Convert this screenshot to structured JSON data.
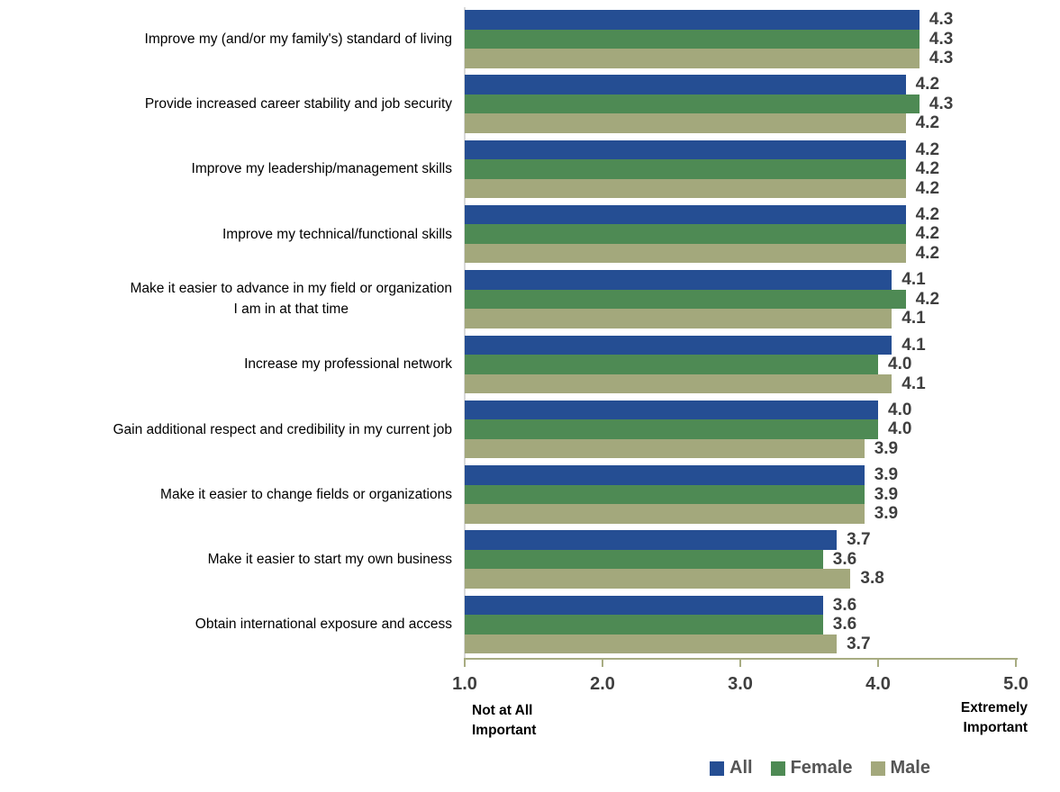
{
  "chart_data": {
    "type": "bar",
    "orientation": "horizontal",
    "title": "",
    "categories": [
      "Improve my (and/or my family's) standard of living",
      "Provide increased career stability and job security",
      "Improve my leadership/management skills",
      "Improve my technical/functional skills",
      "Make it easier to advance in my field or organization\nI am in at that time",
      "Increase my professional network",
      "Gain additional respect and credibility in my current job",
      "Make it easier to change fields or organizations",
      "Make it easier to start my own business",
      "Obtain international exposure and access"
    ],
    "series": [
      {
        "name": "All",
        "color": "#254E93",
        "values": [
          4.3,
          4.2,
          4.2,
          4.2,
          4.1,
          4.1,
          4.0,
          3.9,
          3.7,
          3.6
        ]
      },
      {
        "name": "Female",
        "color": "#4E8A54",
        "values": [
          4.3,
          4.3,
          4.2,
          4.2,
          4.2,
          4.0,
          4.0,
          3.9,
          3.6,
          3.6
        ]
      },
      {
        "name": "Male",
        "color": "#A3A87C",
        "values": [
          4.3,
          4.2,
          4.2,
          4.2,
          4.1,
          4.1,
          3.9,
          3.9,
          3.8,
          3.7
        ]
      }
    ],
    "xlim": [
      1.0,
      5.0
    ],
    "x_ticks": [
      "1.0",
      "2.0",
      "3.0",
      "4.0",
      "5.0"
    ],
    "value_labels_shown": true,
    "grid": false,
    "legend_position": "bottom-right",
    "axis_captions": {
      "left": "Not at All\nImportant",
      "right": "Extremely\nImportant"
    }
  },
  "colors": {
    "background": "#FFFFFF",
    "x_axis_line": "#A8AC82",
    "category_axis_line": "#D9D9D9",
    "value_text": "#3F3F3F",
    "tick_text": "#3F3F3F",
    "category_text": "#000000",
    "legend_text": "#555555"
  }
}
